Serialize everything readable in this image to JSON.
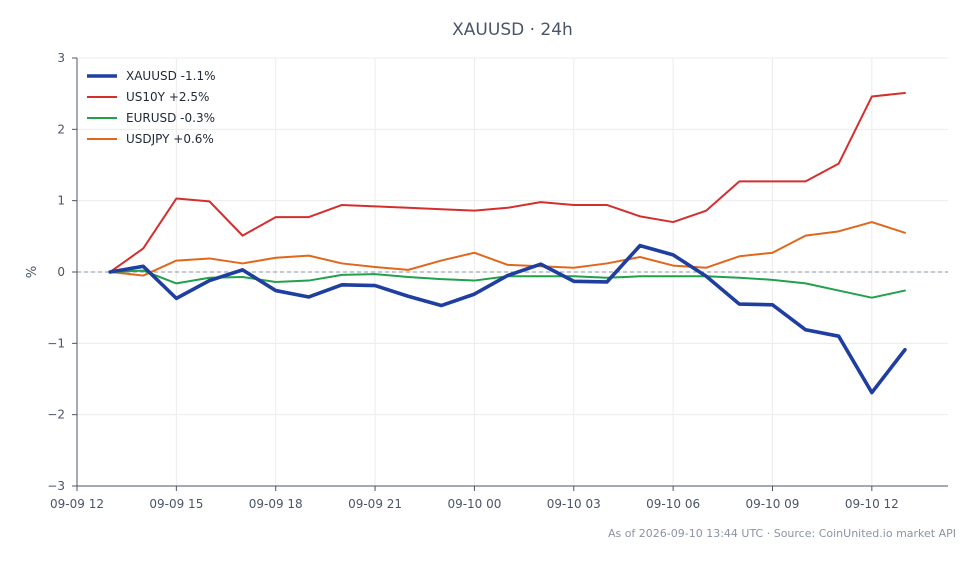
{
  "chart_data": {
    "type": "line",
    "title": "XAUUSD · 24h",
    "xlabel": "",
    "ylabel": "%",
    "x_tick_labels": [
      "09-09 12",
      "09-09 15",
      "09-09 18",
      "09-09 21",
      "09-10 00",
      "09-10 03",
      "09-10 06",
      "09-10 09",
      "09-10 12"
    ],
    "y_tick_labels": [
      "−3",
      "−2",
      "−1",
      "0",
      "1",
      "2",
      "3"
    ],
    "ylim": [
      -3,
      3
    ],
    "grid": true,
    "legend_position": "top-left",
    "zero_reference_line": true,
    "x_hours": [
      1,
      2,
      3,
      4,
      5,
      6,
      7,
      8,
      9,
      10,
      11,
      12,
      13,
      14,
      15,
      16,
      17,
      18,
      19,
      20,
      21,
      22,
      23,
      24,
      25
    ],
    "series": [
      {
        "name": "XAUUSD -1.1%",
        "color": "#1f3fa0",
        "emphasis": true,
        "values": [
          0.0,
          0.08,
          -0.37,
          -0.12,
          0.03,
          -0.26,
          -0.35,
          -0.18,
          -0.19,
          -0.34,
          -0.47,
          -0.31,
          -0.05,
          0.11,
          -0.13,
          -0.14,
          0.37,
          0.24,
          -0.06,
          -0.45,
          -0.46,
          -0.81,
          -0.9,
          -1.69,
          -1.09
        ]
      },
      {
        "name": "US10Y +2.5%",
        "color": "#d32f2f",
        "values": [
          0.0,
          0.33,
          1.03,
          0.99,
          0.51,
          0.77,
          0.77,
          0.94,
          0.92,
          0.9,
          0.88,
          0.86,
          0.9,
          0.98,
          0.94,
          0.94,
          0.78,
          0.7,
          0.86,
          1.27,
          1.27,
          1.27,
          1.52,
          2.46,
          2.51
        ]
      },
      {
        "name": "EURUSD -0.3%",
        "color": "#22a04b",
        "values": [
          0.0,
          0.02,
          -0.16,
          -0.08,
          -0.07,
          -0.14,
          -0.12,
          -0.04,
          -0.03,
          -0.07,
          -0.1,
          -0.12,
          -0.06,
          -0.06,
          -0.06,
          -0.08,
          -0.06,
          -0.06,
          -0.06,
          -0.08,
          -0.11,
          -0.16,
          -0.26,
          -0.36,
          -0.26
        ]
      },
      {
        "name": "USDJPY +0.6%",
        "color": "#e0671b",
        "values": [
          0.0,
          -0.05,
          0.16,
          0.19,
          0.12,
          0.2,
          0.23,
          0.12,
          0.07,
          0.03,
          0.16,
          0.27,
          0.1,
          0.08,
          0.06,
          0.12,
          0.21,
          0.09,
          0.06,
          0.22,
          0.27,
          0.51,
          0.57,
          0.7,
          0.55
        ]
      }
    ]
  },
  "footnote": "As of 2026-09-10 13:44 UTC · Source: CoinUnited.io market API"
}
